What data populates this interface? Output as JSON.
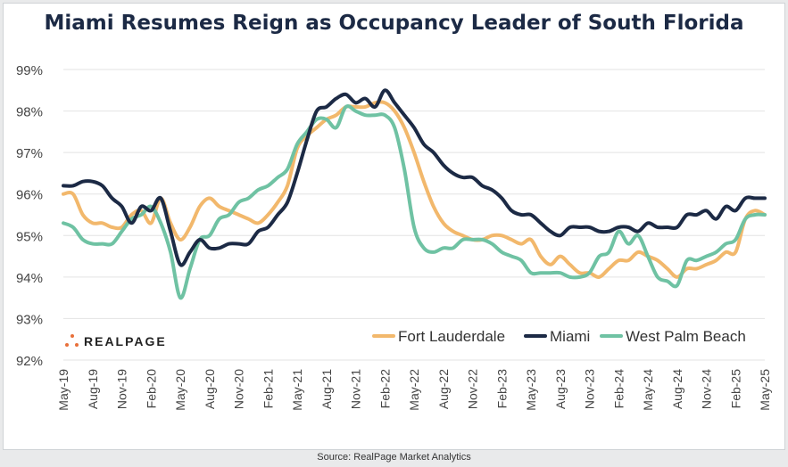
{
  "title": "Miami Resumes Reign as Occupancy Leader of South Florida",
  "source": "Source: RealPage Market Analytics",
  "logo_text": "REALPAGE",
  "colors": {
    "fort_lauderdale": "#f2b86c",
    "miami": "#1c2a45",
    "west_palm_beach": "#6fc2a3",
    "logo_accent": "#e8703a",
    "grid": "#e3e3e3"
  },
  "chart_data": {
    "type": "line",
    "title": "Miami Resumes Reign as Occupancy Leader of South Florida",
    "xlabel": "",
    "ylabel": "",
    "ylim": [
      92,
      99
    ],
    "yticks": [
      "92%",
      "93%",
      "94%",
      "95%",
      "96%",
      "97%",
      "98%",
      "99%"
    ],
    "grid": true,
    "legend_position": "bottom-right",
    "x": [
      "May-19",
      "Jun-19",
      "Jul-19",
      "Aug-19",
      "Sep-19",
      "Oct-19",
      "Nov-19",
      "Dec-19",
      "Jan-20",
      "Feb-20",
      "Mar-20",
      "Apr-20",
      "May-20",
      "Jun-20",
      "Jul-20",
      "Aug-20",
      "Sep-20",
      "Oct-20",
      "Nov-20",
      "Dec-20",
      "Jan-21",
      "Feb-21",
      "Mar-21",
      "Apr-21",
      "May-21",
      "Jun-21",
      "Jul-21",
      "Aug-21",
      "Sep-21",
      "Oct-21",
      "Nov-21",
      "Dec-21",
      "Jan-22",
      "Feb-22",
      "Mar-22",
      "Apr-22",
      "May-22",
      "Jun-22",
      "Jul-22",
      "Aug-22",
      "Sep-22",
      "Oct-22",
      "Nov-22",
      "Dec-22",
      "Jan-23",
      "Feb-23",
      "Mar-23",
      "Apr-23",
      "May-23",
      "Jun-23",
      "Jul-23",
      "Aug-23",
      "Sep-23",
      "Oct-23",
      "Nov-23",
      "Dec-23",
      "Jan-24",
      "Feb-24",
      "Mar-24",
      "Apr-24",
      "May-24",
      "Jun-24",
      "Jul-24",
      "Aug-24",
      "Sep-24",
      "Oct-24",
      "Nov-24",
      "Dec-24",
      "Jan-25",
      "Feb-25",
      "Mar-25",
      "Apr-25",
      "May-25"
    ],
    "xtick_labels": [
      "May-19",
      "Aug-19",
      "Nov-19",
      "Feb-20",
      "May-20",
      "Aug-20",
      "Nov-20",
      "Feb-21",
      "May-21",
      "Aug-21",
      "Nov-21",
      "Feb-22",
      "May-22",
      "Aug-22",
      "Nov-22",
      "Feb-23",
      "May-23",
      "Aug-23",
      "Nov-23",
      "Feb-24",
      "May-24",
      "Aug-24",
      "Nov-24",
      "Feb-25",
      "May-25"
    ],
    "series": [
      {
        "name": "Fort Lauderdale",
        "color": "#f2b86c",
        "values": [
          96.0,
          96.0,
          95.5,
          95.3,
          95.3,
          95.2,
          95.2,
          95.5,
          95.6,
          95.3,
          95.9,
          95.3,
          94.9,
          95.2,
          95.7,
          95.9,
          95.7,
          95.6,
          95.5,
          95.4,
          95.3,
          95.5,
          95.8,
          96.2,
          97.1,
          97.4,
          97.6,
          97.8,
          97.9,
          98.1,
          98.1,
          98.1,
          98.2,
          98.2,
          98.0,
          97.6,
          97.0,
          96.3,
          95.7,
          95.3,
          95.1,
          95.0,
          94.9,
          94.9,
          95.0,
          95.0,
          94.9,
          94.8,
          94.9,
          94.5,
          94.3,
          94.5,
          94.3,
          94.1,
          94.1,
          94.0,
          94.2,
          94.4,
          94.4,
          94.6,
          94.5,
          94.4,
          94.2,
          94.0,
          94.2,
          94.2,
          94.3,
          94.4,
          94.6,
          94.6,
          95.4,
          95.6,
          95.5
        ]
      },
      {
        "name": "Miami",
        "color": "#1c2a45",
        "values": [
          96.2,
          96.2,
          96.3,
          96.3,
          96.2,
          95.9,
          95.7,
          95.3,
          95.7,
          95.6,
          95.9,
          95.1,
          94.3,
          94.6,
          94.9,
          94.7,
          94.7,
          94.8,
          94.8,
          94.8,
          95.1,
          95.2,
          95.5,
          95.8,
          96.5,
          97.3,
          98.0,
          98.1,
          98.3,
          98.4,
          98.2,
          98.3,
          98.1,
          98.5,
          98.2,
          97.9,
          97.6,
          97.2,
          97.0,
          96.7,
          96.5,
          96.4,
          96.4,
          96.2,
          96.1,
          95.9,
          95.6,
          95.5,
          95.5,
          95.3,
          95.1,
          95.0,
          95.2,
          95.2,
          95.2,
          95.1,
          95.1,
          95.2,
          95.2,
          95.1,
          95.3,
          95.2,
          95.2,
          95.2,
          95.5,
          95.5,
          95.6,
          95.4,
          95.7,
          95.6,
          95.9,
          95.9,
          95.9
        ]
      },
      {
        "name": "West Palm Beach",
        "color": "#6fc2a3",
        "values": [
          95.3,
          95.2,
          94.9,
          94.8,
          94.8,
          94.8,
          95.1,
          95.4,
          95.5,
          95.7,
          95.3,
          94.6,
          93.5,
          94.2,
          94.9,
          95.0,
          95.4,
          95.5,
          95.8,
          95.9,
          96.1,
          96.2,
          96.4,
          96.6,
          97.2,
          97.5,
          97.8,
          97.8,
          97.6,
          98.1,
          98.0,
          97.9,
          97.9,
          97.9,
          97.6,
          96.6,
          95.2,
          94.7,
          94.6,
          94.7,
          94.7,
          94.9,
          94.9,
          94.9,
          94.8,
          94.6,
          94.5,
          94.4,
          94.1,
          94.1,
          94.1,
          94.1,
          94.0,
          94.0,
          94.1,
          94.5,
          94.6,
          95.1,
          94.8,
          95.0,
          94.5,
          94.0,
          93.9,
          93.8,
          94.4,
          94.4,
          94.5,
          94.6,
          94.8,
          94.9,
          95.4,
          95.5,
          95.5
        ]
      }
    ]
  }
}
